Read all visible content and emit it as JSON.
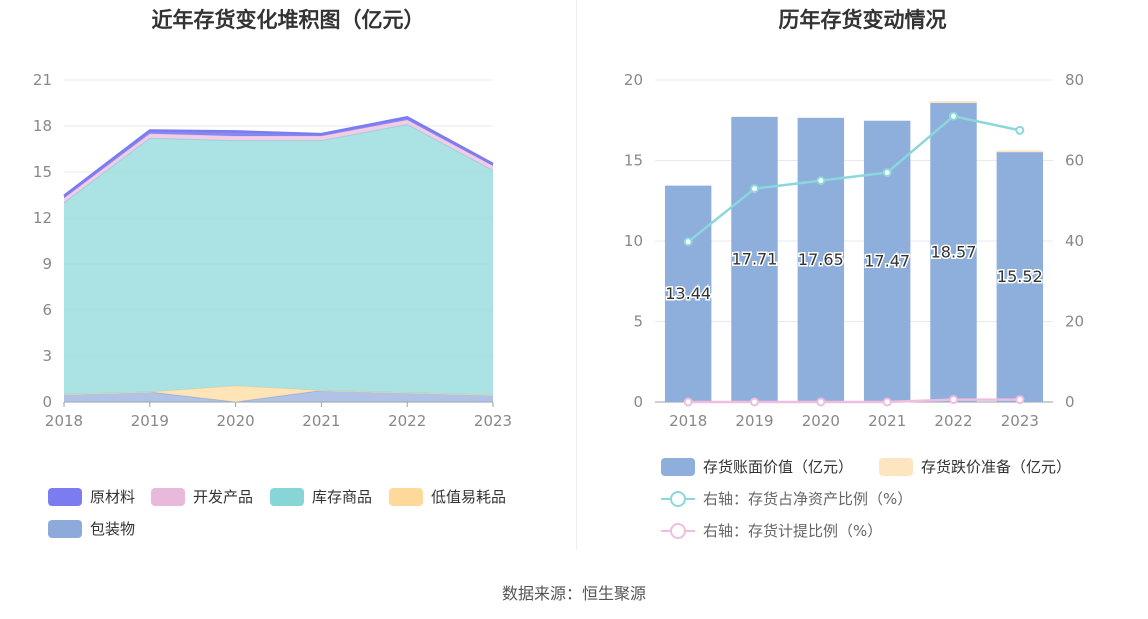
{
  "source_label": "数据来源：恒生聚源",
  "chart_data": [
    {
      "type": "area",
      "title": "近年存货变化堆积图（亿元）",
      "x": [
        "2018",
        "2019",
        "2020",
        "2021",
        "2022",
        "2023"
      ],
      "ylim": [
        0,
        21
      ],
      "yticks": [
        0,
        3,
        6,
        9,
        12,
        15,
        18,
        21
      ],
      "stacked": true,
      "grid": true,
      "legend_position": "bottom-left",
      "series": [
        {
          "name": "包装物",
          "color": "#8eaadb",
          "values": [
            0.5,
            0.65,
            0.0,
            0.75,
            0.6,
            0.45
          ]
        },
        {
          "name": "低值易耗品",
          "color": "#ffd99a",
          "values": [
            0.0,
            0.0,
            1.05,
            0.0,
            0.0,
            0.0
          ]
        },
        {
          "name": "库存商品",
          "color": "#88d5d8",
          "values": [
            12.5,
            16.55,
            16.0,
            16.3,
            17.5,
            14.65
          ]
        },
        {
          "name": "开发产品",
          "color": "#e9b9dc",
          "values": [
            0.3,
            0.3,
            0.3,
            0.3,
            0.3,
            0.3
          ]
        },
        {
          "name": "原材料",
          "color": "#7a7cf0",
          "values": [
            0.14,
            0.21,
            0.3,
            0.12,
            0.17,
            0.12
          ]
        }
      ],
      "legend_order": [
        "原材料",
        "开发产品",
        "库存商品",
        "低值易耗品",
        "包装物"
      ]
    },
    {
      "type": "bar",
      "title": "历年存货变动情况",
      "categories": [
        "2018",
        "2019",
        "2020",
        "2021",
        "2022",
        "2023"
      ],
      "ylim": [
        0,
        20
      ],
      "yticks": [
        0,
        5,
        10,
        15,
        20
      ],
      "y2lim": [
        0,
        80
      ],
      "y2ticks": [
        0,
        20,
        40,
        60,
        80
      ],
      "grid": true,
      "legend_position": "bottom-left",
      "series": [
        {
          "name": "存货账面价值（亿元）",
          "kind": "bar",
          "axis": "left",
          "color": "#8eaedb",
          "values": [
            13.44,
            17.71,
            17.65,
            17.47,
            18.57,
            15.52
          ],
          "labels": [
            "13.44",
            "17.71",
            "17.65",
            "17.47",
            "18.57",
            "15.52"
          ]
        },
        {
          "name": "存货跌价准备（亿元）",
          "kind": "bar-stack",
          "axis": "left",
          "color": "#fde6bf",
          "values": [
            0.0,
            0.0,
            0.0,
            0.0,
            0.12,
            0.1
          ]
        },
        {
          "name": "右轴：存货占净资产比例（%）",
          "kind": "line",
          "axis": "right",
          "color": "#8ad7dc",
          "values": [
            39.8,
            53.0,
            55.0,
            57.0,
            71.0,
            67.5
          ]
        },
        {
          "name": "右轴：存货计提比例（%）",
          "kind": "line",
          "axis": "right",
          "color": "#f0bde0",
          "values": [
            0.0,
            0.0,
            0.0,
            0.0,
            0.6,
            0.6
          ]
        }
      ]
    }
  ]
}
